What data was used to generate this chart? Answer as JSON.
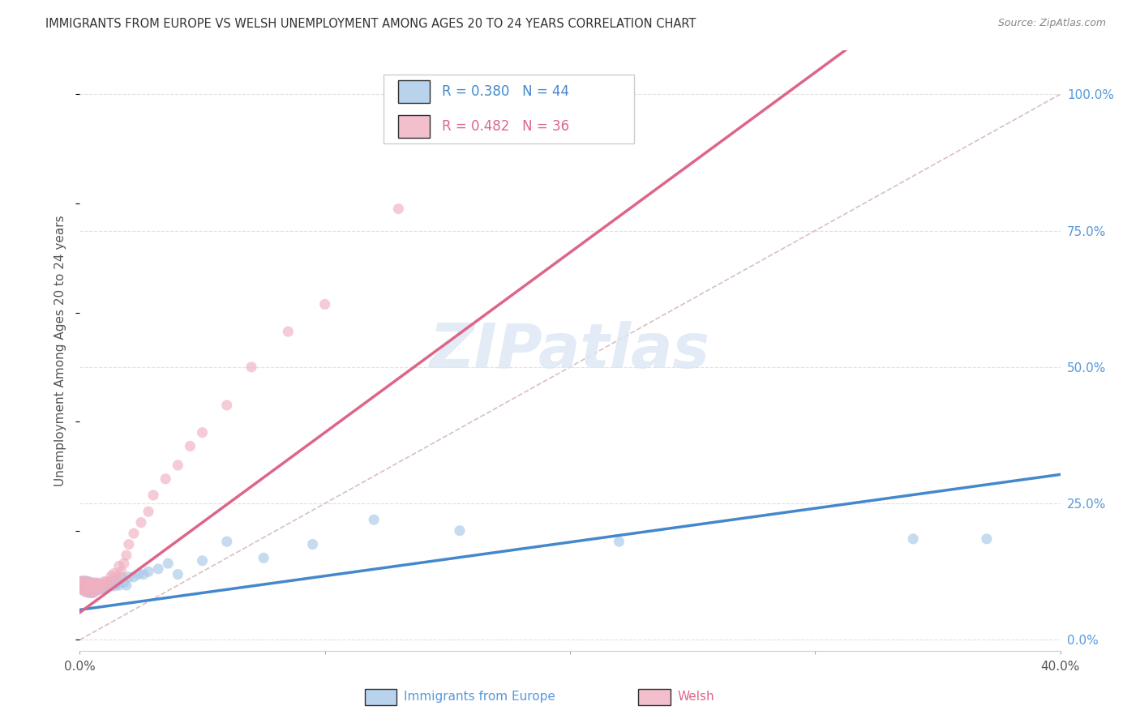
{
  "title": "IMMIGRANTS FROM EUROPE VS WELSH UNEMPLOYMENT AMONG AGES 20 TO 24 YEARS CORRELATION CHART",
  "source": "Source: ZipAtlas.com",
  "ylabel": "Unemployment Among Ages 20 to 24 years",
  "ytick_labels": [
    "0.0%",
    "25.0%",
    "50.0%",
    "75.0%",
    "100.0%"
  ],
  "ytick_values": [
    0.0,
    0.25,
    0.5,
    0.75,
    1.0
  ],
  "xlim": [
    0.0,
    0.4
  ],
  "ylim": [
    -0.02,
    1.08
  ],
  "legend_label1": "Immigrants from Europe",
  "legend_label2": "Welsh",
  "R1": 0.38,
  "N1": 44,
  "R2": 0.482,
  "N2": 36,
  "blue_color": "#a8c8e8",
  "pink_color": "#f0b0c0",
  "blue_line_color": "#4488cc",
  "pink_line_color": "#dd6688",
  "diag_line_color": "#d8c0c0",
  "watermark": "ZIPatlas",
  "grid_color": "#e0e0e0",
  "blue_scatter_x": [
    0.001,
    0.002,
    0.003,
    0.003,
    0.004,
    0.004,
    0.005,
    0.005,
    0.006,
    0.006,
    0.007,
    0.007,
    0.008,
    0.008,
    0.009,
    0.009,
    0.01,
    0.01,
    0.011,
    0.012,
    0.013,
    0.014,
    0.015,
    0.016,
    0.017,
    0.018,
    0.019,
    0.02,
    0.022,
    0.024,
    0.026,
    0.028,
    0.032,
    0.036,
    0.04,
    0.05,
    0.06,
    0.075,
    0.095,
    0.12,
    0.155,
    0.22,
    0.34,
    0.37
  ],
  "blue_scatter_y": [
    0.1,
    0.1,
    0.095,
    0.1,
    0.09,
    0.1,
    0.09,
    0.1,
    0.095,
    0.1,
    0.095,
    0.1,
    0.095,
    0.1,
    0.095,
    0.1,
    0.095,
    0.1,
    0.1,
    0.1,
    0.105,
    0.1,
    0.105,
    0.1,
    0.115,
    0.105,
    0.1,
    0.115,
    0.115,
    0.12,
    0.12,
    0.125,
    0.13,
    0.14,
    0.12,
    0.145,
    0.18,
    0.15,
    0.175,
    0.22,
    0.2,
    0.18,
    0.185,
    0.185
  ],
  "pink_scatter_x": [
    0.001,
    0.002,
    0.003,
    0.004,
    0.005,
    0.005,
    0.006,
    0.007,
    0.007,
    0.008,
    0.009,
    0.01,
    0.011,
    0.012,
    0.013,
    0.014,
    0.015,
    0.016,
    0.017,
    0.018,
    0.019,
    0.02,
    0.022,
    0.025,
    0.028,
    0.03,
    0.035,
    0.04,
    0.045,
    0.05,
    0.06,
    0.07,
    0.085,
    0.1,
    0.13,
    0.2
  ],
  "pink_scatter_y": [
    0.1,
    0.1,
    0.095,
    0.1,
    0.09,
    0.1,
    0.1,
    0.095,
    0.1,
    0.1,
    0.1,
    0.105,
    0.105,
    0.1,
    0.115,
    0.12,
    0.115,
    0.135,
    0.125,
    0.14,
    0.155,
    0.175,
    0.195,
    0.215,
    0.235,
    0.265,
    0.295,
    0.32,
    0.355,
    0.38,
    0.43,
    0.5,
    0.565,
    0.615,
    0.79,
    0.97
  ]
}
